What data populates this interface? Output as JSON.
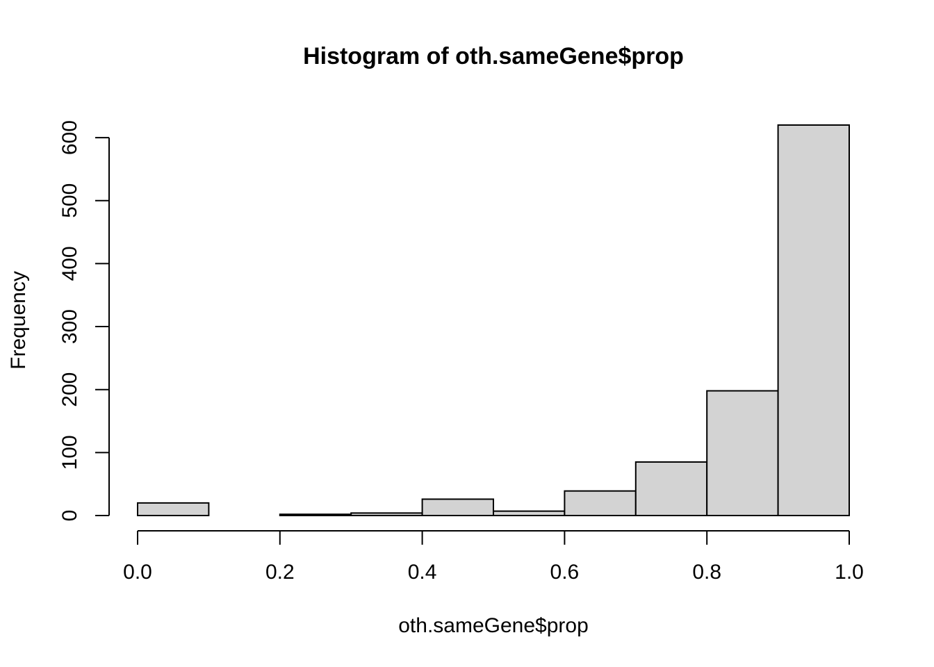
{
  "chart_data": {
    "type": "bar",
    "title": "Histogram of oth.sameGene$prop",
    "xlabel": "oth.sameGene$prop",
    "ylabel": "Frequency",
    "bins": [
      {
        "start": 0.0,
        "end": 0.1,
        "count": 20
      },
      {
        "start": 0.1,
        "end": 0.2,
        "count": 0
      },
      {
        "start": 0.2,
        "end": 0.3,
        "count": 2
      },
      {
        "start": 0.3,
        "end": 0.4,
        "count": 4
      },
      {
        "start": 0.4,
        "end": 0.5,
        "count": 26
      },
      {
        "start": 0.5,
        "end": 0.6,
        "count": 7
      },
      {
        "start": 0.6,
        "end": 0.7,
        "count": 39
      },
      {
        "start": 0.7,
        "end": 0.8,
        "count": 85
      },
      {
        "start": 0.8,
        "end": 0.9,
        "count": 198
      },
      {
        "start": 0.9,
        "end": 1.0,
        "count": 620
      }
    ],
    "xlim": [
      0.0,
      1.0
    ],
    "ylim": [
      0,
      620
    ],
    "x_ticks": [
      "0.0",
      "0.2",
      "0.4",
      "0.6",
      "0.8",
      "1.0"
    ],
    "y_ticks": [
      "0",
      "100",
      "200",
      "300",
      "400",
      "500",
      "600"
    ],
    "bar_color": "#d3d3d3",
    "grid": false
  }
}
